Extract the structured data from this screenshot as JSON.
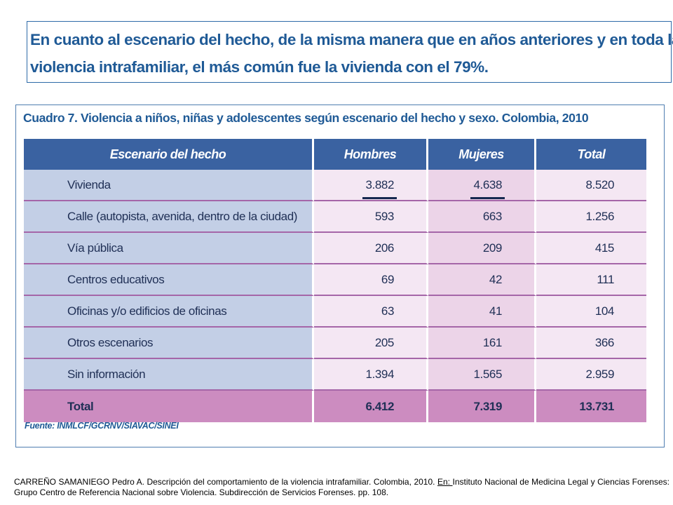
{
  "intro": {
    "line1": "En cuanto al escenario del hecho, de la misma manera que en años anteriores y en toda la",
    "line2": "violencia intrafamiliar, el más común fue la vivienda con el 79%."
  },
  "table": {
    "caption": "Cuadro 7. Violencia a niños, niñas y adolescentes según escenario del hecho y sexo. Colombia, 2010",
    "headers": [
      "Escenario del hecho",
      "Hombres",
      "Mujeres",
      "Total"
    ],
    "rows": [
      {
        "escenario": "Vivienda",
        "hombres": "3.882",
        "mujeres": "4.638",
        "total": "8.520"
      },
      {
        "escenario": "Calle (autopista, avenida, dentro de la ciudad)",
        "hombres": "593",
        "mujeres": "663",
        "total": "1.256"
      },
      {
        "escenario": "Vía pública",
        "hombres": "206",
        "mujeres": "209",
        "total": "415"
      },
      {
        "escenario": "Centros educativos",
        "hombres": "69",
        "mujeres": "42",
        "total": "111"
      },
      {
        "escenario": "Oficinas y/o edificios de oficinas",
        "hombres": "63",
        "mujeres": "41",
        "total": "104"
      },
      {
        "escenario": "Otros escenarios",
        "hombres": "205",
        "mujeres": "161",
        "total": "366"
      },
      {
        "escenario": "Sin información",
        "hombres": "1.394",
        "mujeres": "1.565",
        "total": "2.959"
      }
    ],
    "total_row": {
      "escenario": "Total",
      "hombres": "6.412",
      "mujeres": "7.319",
      "total": "13.731"
    },
    "source": "Fuente: INMLCF/GCRNV/SIAVAC/SINEI"
  },
  "citation": {
    "part1": "CARREÑO SAMANIEGO Pedro A. Descripción del comportamiento de la violencia intrafamiliar. Colombia,  2010. ",
    "underlined": "En: ",
    "part2": "Instituto Nacional de Medicina Legal y Ciencias Forenses: Grupo Centro de Referencia Nacional sobre Violencia. Subdirección de Servicios Forenses. pp. 108."
  },
  "colors": {
    "title_blue": "#1f5a96",
    "header_blue": "#3a62a1",
    "label_col": "#c3cfe6",
    "total_row": "#cc8cc0",
    "row_divider": "#a566a8"
  }
}
